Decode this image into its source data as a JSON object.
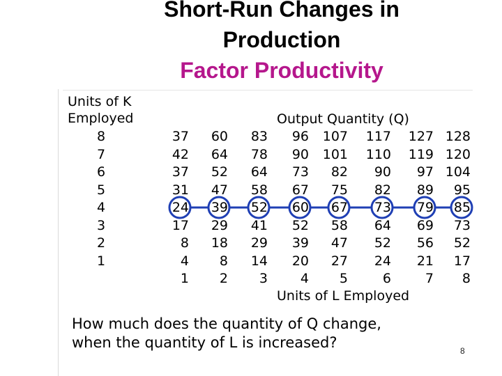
{
  "slide": {
    "title_line1": "Short-Run Changes in",
    "title_line2": "Production",
    "subtitle": "Factor Productivity",
    "question_line1": "How much does the quantity of  Q change,",
    "question_line2": "when the quantity of L is increased?",
    "page_number": "8"
  },
  "table": {
    "k_header_line1": "Units of K",
    "k_header_line2": "Employed",
    "q_header": "Output Quantity (Q)",
    "l_header": "Units of L Employed",
    "rows": [
      {
        "k": "8",
        "values": [
          "37",
          "60",
          "83",
          "96",
          "107",
          "117",
          "127",
          "128"
        ]
      },
      {
        "k": "7",
        "values": [
          "42",
          "64",
          "78",
          "90",
          "101",
          "110",
          "119",
          "120"
        ]
      },
      {
        "k": "6",
        "values": [
          "37",
          "52",
          "64",
          "73",
          "82",
          "90",
          "97",
          "104"
        ]
      },
      {
        "k": "5",
        "values": [
          "31",
          "47",
          "58",
          "67",
          "75",
          "82",
          "89",
          "95"
        ]
      },
      {
        "k": "4",
        "values": [
          "24",
          "39",
          "52",
          "60",
          "67",
          "73",
          "79",
          "85"
        ]
      },
      {
        "k": "3",
        "values": [
          "17",
          "29",
          "41",
          "52",
          "58",
          "64",
          "69",
          "73"
        ]
      },
      {
        "k": "2",
        "values": [
          "8",
          "18",
          "29",
          "39",
          "47",
          "52",
          "56",
          "52"
        ]
      },
      {
        "k": "1",
        "values": [
          "4",
          "8",
          "14",
          "20",
          "27",
          "24",
          "21",
          "17"
        ]
      }
    ],
    "l_values": [
      "1",
      "2",
      "3",
      "4",
      "5",
      "6",
      "7",
      "8"
    ],
    "highlighted_row_k": "4",
    "highlight_color": "#1f3fb4"
  }
}
